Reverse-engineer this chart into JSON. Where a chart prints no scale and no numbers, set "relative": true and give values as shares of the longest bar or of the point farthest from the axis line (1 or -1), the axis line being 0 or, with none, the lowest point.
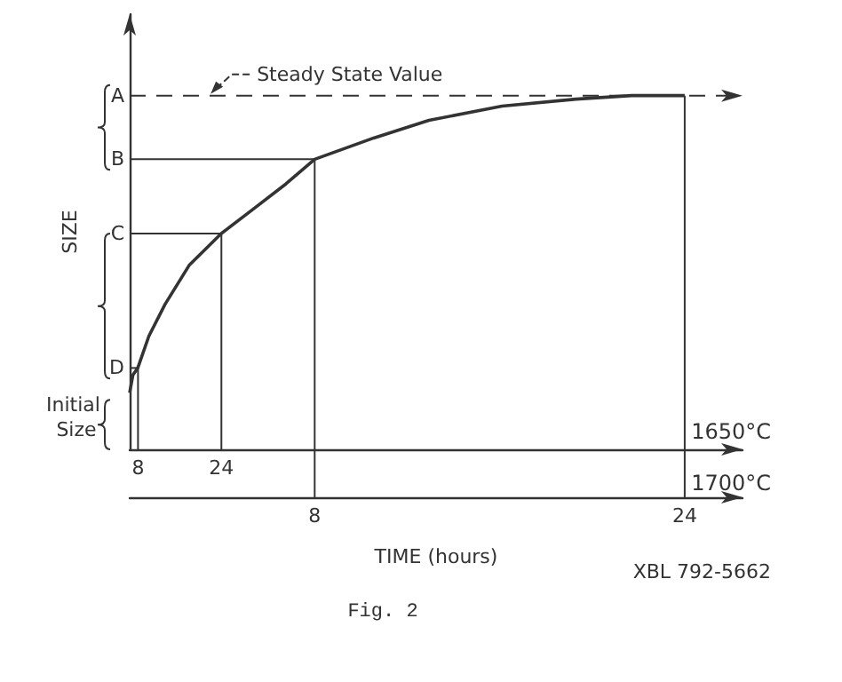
{
  "chart_data": {
    "type": "line",
    "relative": true,
    "ylabel": "SIZE",
    "xlabel": "TIME (hours)",
    "x": [
      0,
      0.14,
      0.35,
      0.83,
      1.53,
      2.57,
      3.96,
      5.36,
      6.75,
      8,
      10.55,
      12.94,
      16.1,
      19.3,
      21.7,
      24
    ],
    "values": [
      0.16,
      0.21,
      0.23,
      0.32,
      0.41,
      0.52,
      0.61,
      0.68,
      0.75,
      0.82,
      0.88,
      0.93,
      0.97,
      0.99,
      1,
      1
    ],
    "color": "#333333",
    "xlim": [
      0,
      26.5
    ],
    "xticks": [
      8,
      24
    ],
    "x2lim": [
      6.4,
      124
    ],
    "x2ticks": [
      8,
      24
    ],
    "ref_lines": [
      {
        "axis": "y",
        "value": 1,
        "label": "A",
        "line_style": "dashed"
      },
      {
        "axis": "y",
        "value": 0.82,
        "label": "B"
      },
      {
        "axis": "y",
        "value": 0.61,
        "label": "C"
      },
      {
        "axis": "y",
        "value": 0.23,
        "label": "D"
      },
      {
        "axis": "x2",
        "value": 8
      },
      {
        "axis": "x2",
        "value": 24
      },
      {
        "axis": "x",
        "value": 8
      },
      {
        "axis": "x",
        "value": 24
      }
    ],
    "annotations": [
      {
        "text": "Steady State Value",
        "x": 3.5,
        "y": 1
      },
      "Initial Size",
      "1650°C",
      "1700°C",
      "XBL 792-5662",
      "Fig. 2"
    ]
  }
}
